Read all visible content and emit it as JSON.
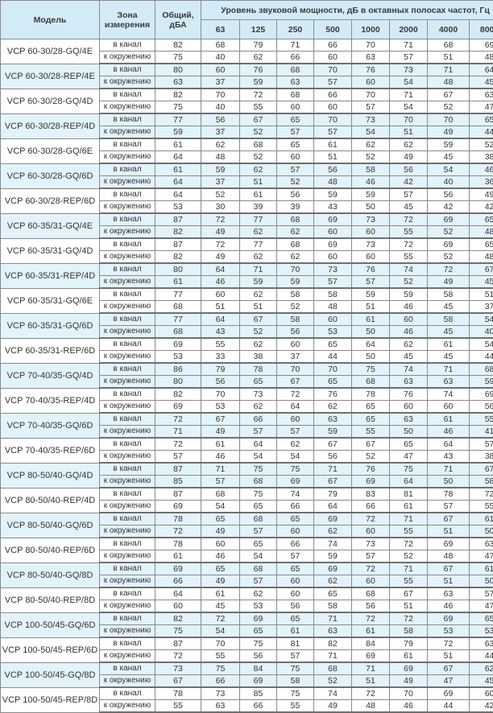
{
  "header": {
    "model": "Модель",
    "zone": "Зона измерения",
    "total": "Общий, дБА",
    "bands_title": "Уровень звуковой мощности, дБ в октавных полосах частот, Гц",
    "bands": [
      "63",
      "125",
      "250",
      "500",
      "1000",
      "2000",
      "4000",
      "8000"
    ]
  },
  "zones": {
    "duct": "в канал",
    "env": "к окружению"
  },
  "colors": {
    "header_bg": "#d3ebf7",
    "alt_row_bg": "#e2f3fb",
    "border": "#8a8a8a"
  },
  "rows": [
    {
      "model": "VCP 60-30/28-GQ/4E",
      "duct": [
        82,
        68,
        79,
        71,
        66,
        70,
        71,
        68,
        69
      ],
      "env": [
        75,
        40,
        62,
        66,
        60,
        63,
        57,
        51,
        48
      ]
    },
    {
      "model": "VCP 60-30/28-REP/4E",
      "duct": [
        80,
        60,
        76,
        68,
        70,
        76,
        73,
        71,
        64
      ],
      "env": [
        63,
        37,
        59,
        63,
        57,
        60,
        54,
        48,
        45
      ]
    },
    {
      "model": "VCP 60-30/28-GQ/4D",
      "duct": [
        82,
        70,
        72,
        68,
        66,
        70,
        71,
        67,
        63
      ],
      "env": [
        75,
        40,
        55,
        60,
        60,
        57,
        54,
        52,
        47
      ]
    },
    {
      "model": "VCP 60-30/28-REP/4D",
      "duct": [
        77,
        56,
        67,
        65,
        70,
        73,
        70,
        70,
        65
      ],
      "env": [
        59,
        37,
        52,
        57,
        57,
        54,
        51,
        49,
        44
      ]
    },
    {
      "model": "VCP 60-30/28-GQ/6E",
      "duct": [
        61,
        62,
        68,
        65,
        61,
        62,
        62,
        59,
        52
      ],
      "env": [
        64,
        48,
        52,
        60,
        51,
        52,
        49,
        45,
        38
      ]
    },
    {
      "model": "VCP 60-30/28-GQ/6D",
      "duct": [
        61,
        59,
        62,
        57,
        56,
        58,
        56,
        54,
        46
      ],
      "env": [
        64,
        37,
        51,
        52,
        48,
        46,
        42,
        40,
        36
      ]
    },
    {
      "model": "VCP 60-30/28-REP/6D",
      "duct": [
        64,
        52,
        61,
        56,
        59,
        59,
        57,
        56,
        49
      ],
      "env": [
        53,
        30,
        39,
        39,
        43,
        50,
        45,
        42,
        42
      ]
    },
    {
      "model": "VCP 60-35/31-GQ/4E",
      "duct": [
        87,
        72,
        77,
        68,
        69,
        73,
        72,
        69,
        65
      ],
      "env": [
        82,
        49,
        62,
        62,
        60,
        60,
        55,
        52,
        48
      ]
    },
    {
      "model": "VCP 60-35/31-GQ/4D",
      "duct": [
        87,
        72,
        77,
        68,
        69,
        73,
        72,
        69,
        65
      ],
      "env": [
        82,
        49,
        62,
        62,
        60,
        60,
        55,
        52,
        48
      ]
    },
    {
      "model": "VCP 60-35/31-REP/4D",
      "duct": [
        80,
        64,
        71,
        70,
        73,
        76,
        74,
        72,
        67
      ],
      "env": [
        61,
        46,
        59,
        59,
        57,
        57,
        52,
        49,
        45
      ]
    },
    {
      "model": "VCP 60-35/31-GQ/6E",
      "duct": [
        77,
        60,
        62,
        58,
        58,
        59,
        59,
        58,
        51
      ],
      "env": [
        68,
        51,
        51,
        52,
        48,
        51,
        46,
        45,
        37
      ]
    },
    {
      "model": "VCP 60-35/31-GQ/6D",
      "duct": [
        77,
        64,
        67,
        58,
        60,
        61,
        60,
        58,
        54
      ],
      "env": [
        68,
        43,
        52,
        56,
        53,
        50,
        46,
        45,
        40
      ]
    },
    {
      "model": "VCP 60-35/31-REP/6D",
      "duct": [
        69,
        55,
        62,
        60,
        65,
        64,
        62,
        61,
        54
      ],
      "env": [
        53,
        33,
        38,
        37,
        44,
        50,
        45,
        45,
        44
      ]
    },
    {
      "model": "VCP 70-40/35-GQ/4D",
      "duct": [
        86,
        79,
        78,
        70,
        70,
        75,
        74,
        71,
        68
      ],
      "env": [
        80,
        56,
        65,
        67,
        65,
        68,
        63,
        63,
        59
      ]
    },
    {
      "model": "VCP 70-40/35-REP/4D",
      "duct": [
        82,
        70,
        73,
        72,
        76,
        78,
        76,
        74,
        69
      ],
      "env": [
        69,
        53,
        62,
        64,
        62,
        65,
        60,
        60,
        56
      ]
    },
    {
      "model": "VCP 70-40/35-GQ/6D",
      "duct": [
        72,
        67,
        66,
        60,
        63,
        65,
        63,
        61,
        55
      ],
      "env": [
        71,
        49,
        57,
        57,
        59,
        55,
        50,
        46,
        41
      ]
    },
    {
      "model": "VCP 70-40/35-REP/6D",
      "duct": [
        72,
        61,
        64,
        62,
        67,
        67,
        65,
        64,
        57
      ],
      "env": [
        57,
        46,
        54,
        54,
        56,
        52,
        47,
        43,
        38
      ]
    },
    {
      "model": "VCP 80-50/40-GQ/4D",
      "duct": [
        87,
        71,
        75,
        75,
        71,
        76,
        75,
        71,
        67
      ],
      "env": [
        85,
        57,
        68,
        69,
        67,
        69,
        64,
        50,
        58
      ]
    },
    {
      "model": "VCP 80-50/40-REP/4D",
      "duct": [
        87,
        68,
        75,
        74,
        79,
        83,
        81,
        78,
        72
      ],
      "env": [
        69,
        54,
        65,
        66,
        64,
        66,
        61,
        57,
        55
      ]
    },
    {
      "model": "VCP 80-50/40-GQ/6D",
      "duct": [
        78,
        65,
        68,
        65,
        69,
        72,
        71,
        67,
        61
      ],
      "env": [
        72,
        49,
        57,
        60,
        62,
        60,
        55,
        51,
        50
      ]
    },
    {
      "model": "VCP 80-50/40-REP/6D",
      "duct": [
        78,
        60,
        65,
        66,
        74,
        73,
        72,
        69,
        63
      ],
      "env": [
        61,
        46,
        54,
        57,
        59,
        57,
        52,
        48,
        47
      ]
    },
    {
      "model": "VCP 80-50/40-GQ/8D",
      "duct": [
        69,
        65,
        68,
        65,
        69,
        72,
        71,
        67,
        61
      ],
      "env": [
        66,
        49,
        57,
        60,
        62,
        60,
        55,
        51,
        50
      ]
    },
    {
      "model": "VCP 80-50/40-REP/8D",
      "duct": [
        64,
        61,
        62,
        60,
        65,
        68,
        67,
        63,
        57
      ],
      "env": [
        60,
        45,
        53,
        56,
        58,
        56,
        51,
        46,
        47
      ]
    },
    {
      "model": "VCP 100-50/45-GQ/6D",
      "duct": [
        82,
        72,
        69,
        65,
        71,
        72,
        72,
        69,
        65
      ],
      "env": [
        75,
        54,
        65,
        61,
        63,
        61,
        58,
        53,
        53
      ]
    },
    {
      "model": "VCP 100-50/45-REP/6D",
      "duct": [
        87,
        70,
        75,
        81,
        82,
        84,
        79,
        72,
        63
      ],
      "env": [
        72,
        55,
        56,
        57,
        71,
        69,
        61,
        51,
        44
      ]
    },
    {
      "model": "VCP 100-50/45-GQ/8D",
      "duct": [
        73,
        75,
        84,
        75,
        68,
        71,
        69,
        67,
        62
      ],
      "env": [
        67,
        66,
        69,
        58,
        52,
        51,
        49,
        47,
        45
      ]
    },
    {
      "model": "VCP 100-50/45-REP/8D",
      "duct": [
        78,
        73,
        85,
        75,
        74,
        72,
        70,
        69,
        60
      ],
      "env": [
        55,
        63,
        66,
        55,
        49,
        48,
        46,
        44,
        42
      ]
    }
  ]
}
